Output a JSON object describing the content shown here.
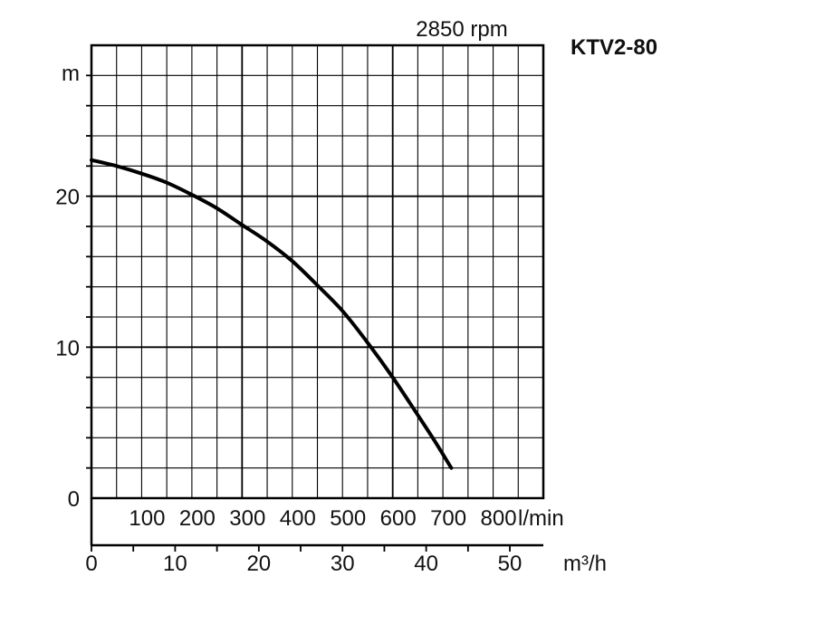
{
  "chart_data": {
    "type": "line",
    "title": "KTV2-80",
    "subtitle": "2850 rpm",
    "ylabel": "m",
    "xlabel": "m³/h",
    "x2label": "l/min",
    "xlim": [
      0,
      54
    ],
    "ylim": [
      0,
      30
    ],
    "y_ticks": [
      "0",
      "10",
      "20"
    ],
    "x_ticks": [
      "0",
      "10",
      "20",
      "30",
      "40",
      "50"
    ],
    "x2_ticks": [
      "100",
      "200",
      "300",
      "400",
      "500",
      "600",
      "700",
      "800"
    ],
    "grid": true,
    "series": [
      {
        "x": [
          0,
          3,
          6,
          9,
          12,
          15,
          18,
          21,
          24,
          27,
          30,
          33,
          36,
          39,
          41,
          43
        ],
        "y": [
          22.4,
          22.0,
          21.5,
          20.9,
          20.1,
          19.2,
          18.1,
          17.0,
          15.7,
          14.1,
          12.4,
          10.3,
          8.0,
          5.5,
          3.8,
          2.0
        ],
        "color": "#000000"
      }
    ]
  }
}
